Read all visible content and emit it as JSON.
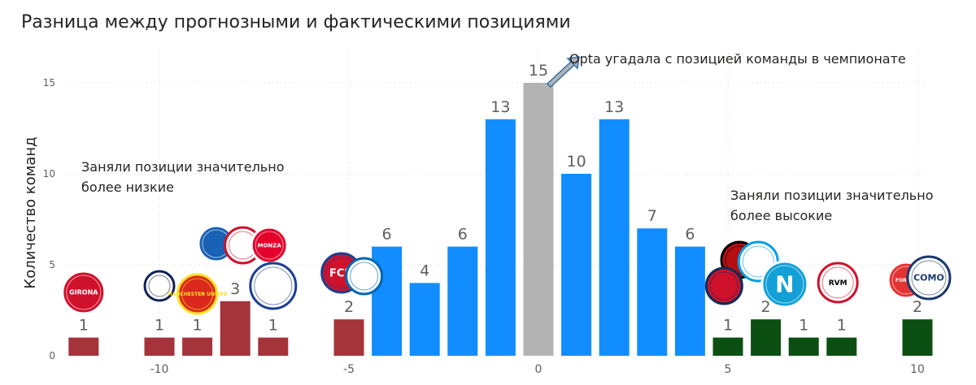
{
  "chart_data": {
    "type": "bar",
    "title": "Разница между прогнозными и фактическими позициями",
    "xlabel": "",
    "ylabel": "Количество команд",
    "xlim": [
      -12,
      10.5
    ],
    "ylim": [
      0,
      17
    ],
    "x_ticks": [
      -10,
      -5,
      0,
      5,
      10
    ],
    "y_ticks": [
      0,
      5,
      10,
      15
    ],
    "grid": true,
    "bars": [
      {
        "x": -12,
        "value": 1,
        "label": "1",
        "color": "#a4343a"
      },
      {
        "x": -10,
        "value": 1,
        "label": "1",
        "color": "#a4343a"
      },
      {
        "x": -9,
        "value": 1,
        "label": "1",
        "color": "#a4343a"
      },
      {
        "x": -8,
        "value": 3,
        "label": "3",
        "color": "#a4343a"
      },
      {
        "x": -7,
        "value": 1,
        "label": "1",
        "color": "#a4343a"
      },
      {
        "x": -5,
        "value": 2,
        "label": "2",
        "color": "#a4343a"
      },
      {
        "x": -4,
        "value": 6,
        "label": "6",
        "color": "#118dff"
      },
      {
        "x": -3,
        "value": 4,
        "label": "4",
        "color": "#118dff"
      },
      {
        "x": -2,
        "value": 6,
        "label": "6",
        "color": "#118dff"
      },
      {
        "x": -1,
        "value": 13,
        "label": "13",
        "color": "#118dff"
      },
      {
        "x": 0,
        "value": 15,
        "label": "15",
        "color": "#b3b3b3"
      },
      {
        "x": 1,
        "value": 10,
        "label": "10",
        "color": "#118dff"
      },
      {
        "x": 2,
        "value": 13,
        "label": "13",
        "color": "#118dff"
      },
      {
        "x": 3,
        "value": 7,
        "label": "7",
        "color": "#118dff"
      },
      {
        "x": 4,
        "value": 6,
        "label": "6",
        "color": "#118dff"
      },
      {
        "x": 5,
        "value": 1,
        "label": "1",
        "color": "#0b5012"
      },
      {
        "x": 6,
        "value": 2,
        "label": "2",
        "color": "#0b5012"
      },
      {
        "x": 7,
        "value": 1,
        "label": "1",
        "color": "#0b5012"
      },
      {
        "x": 8,
        "value": 1,
        "label": "1",
        "color": "#0b5012"
      },
      {
        "x": 10,
        "value": 2,
        "label": "2",
        "color": "#0b5012"
      }
    ],
    "annotations": [
      {
        "name": "annotation-opta",
        "lines": [
          "Opta угадала с позицией команды в чемпионате"
        ]
      },
      {
        "name": "annotation-lower",
        "lines": [
          "Заняли позиции значительно",
          "более низкие"
        ]
      },
      {
        "name": "annotation-higher",
        "lines": [
          "Заняли позиции значительно",
          "более высокие"
        ]
      }
    ]
  },
  "logos": [
    {
      "name": "girona-logo-icon",
      "x": -12,
      "text": "GIRONA"
    },
    {
      "name": "tottenham-logo-icon",
      "x": -10,
      "text": ""
    },
    {
      "name": "man-united-logo-icon",
      "x": -9,
      "text": "MANCHESTER UNITED"
    },
    {
      "name": "hoffenheim-logo-icon",
      "x": -8.5,
      "text": ""
    },
    {
      "name": "sevilla-logo-icon",
      "x": -7.8,
      "text": ""
    },
    {
      "name": "monza-logo-icon",
      "x": -7.1,
      "text": "MONZA"
    },
    {
      "name": "montpellier-logo-icon",
      "x": -7,
      "text": ""
    },
    {
      "name": "heidenheim-logo-icon",
      "x": -5.2,
      "text": "FCH"
    },
    {
      "name": "real-sociedad-logo-icon",
      "x": -4.6,
      "text": ""
    },
    {
      "name": "bournemouth-logo-icon",
      "x": 5.3,
      "text": ""
    },
    {
      "name": "osasuna-logo-icon",
      "x": 4.9,
      "text": ""
    },
    {
      "name": "strasbourg-logo-icon",
      "x": 5.8,
      "text": ""
    },
    {
      "name": "napoli-logo-icon",
      "x": 6.5,
      "text": "N"
    },
    {
      "name": "rayo-vallecano-logo-icon",
      "x": 7.9,
      "text": "RVM"
    },
    {
      "name": "nottingham-forest-logo-icon",
      "x": 9.7,
      "text": "FOREST"
    },
    {
      "name": "como-logo-icon",
      "x": 10.3,
      "text": "COMO"
    }
  ]
}
